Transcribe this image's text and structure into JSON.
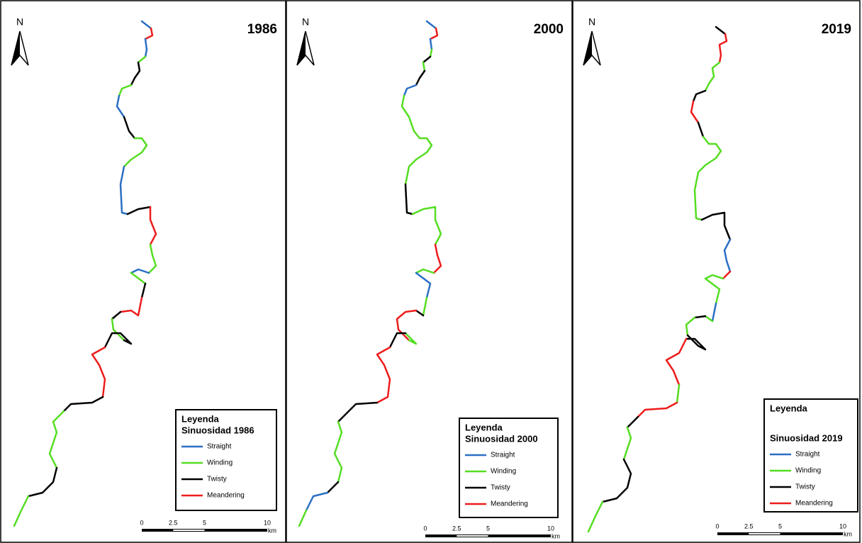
{
  "north": "N",
  "classes": [
    {
      "name": "Straight",
      "color": "#2b6fc4"
    },
    {
      "name": "Winding",
      "color": "#55dd22"
    },
    {
      "name": "Twisty",
      "color": "#000000"
    },
    {
      "name": "Meandering",
      "color": "#ee1c1c"
    }
  ],
  "panels": [
    {
      "year": "1986",
      "legend": {
        "title": "Leyenda",
        "subtitle": "Sinuosidad 1986"
      }
    },
    {
      "year": "2000",
      "legend": {
        "title": "Leyenda",
        "subtitle": "Sinuosidad 2000"
      }
    },
    {
      "year": "2019",
      "legend": {
        "title": "Leyenda",
        "subtitle": "Sinuosidad 2019"
      }
    }
  ],
  "scale": {
    "ticks": [
      "0",
      "2.5",
      "5",
      "10"
    ],
    "unit": "km"
  }
}
